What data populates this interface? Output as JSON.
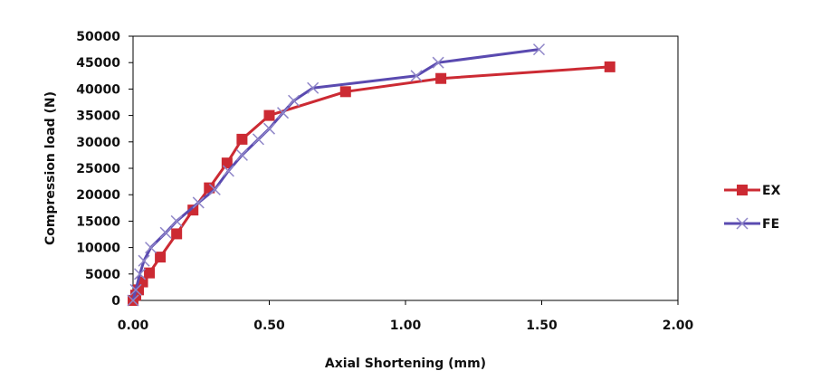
{
  "chart_data": {
    "type": "line",
    "title": "",
    "xlabel": "Axial Shortening (mm)",
    "ylabel": "Compression load (N)",
    "xlim": [
      0,
      2
    ],
    "ylim": [
      0,
      50000
    ],
    "x_ticks": [
      0,
      0.5,
      1,
      1.5,
      2
    ],
    "x_tick_labels": [
      "0.00",
      "0.50",
      "1.00",
      "1.50",
      "2.00"
    ],
    "y_ticks": [
      0,
      5000,
      10000,
      15000,
      20000,
      25000,
      30000,
      35000,
      40000,
      45000,
      50000
    ],
    "y_tick_labels": [
      "0",
      "5000",
      "10000",
      "15000",
      "20000",
      "25000",
      "30000",
      "35000",
      "40000",
      "45000",
      "50000"
    ],
    "grid": false,
    "legend_position": "right",
    "series": [
      {
        "name": "EX",
        "color": "#cc2a33",
        "marker": "square",
        "x": [
          0.0,
          0.01,
          0.02,
          0.035,
          0.06,
          0.1,
          0.16,
          0.22,
          0.28,
          0.345,
          0.4,
          0.5,
          0.78,
          1.13,
          1.75
        ],
        "y": [
          0,
          1000,
          2000,
          3500,
          5200,
          8200,
          12600,
          17100,
          21300,
          26000,
          30500,
          35000,
          39500,
          42000,
          44200
        ]
      },
      {
        "name": "FE",
        "color": "#5a4ab0",
        "marker": "x",
        "x": [
          0.0,
          0.01,
          0.025,
          0.04,
          0.065,
          0.12,
          0.16,
          0.24,
          0.3,
          0.35,
          0.4,
          0.46,
          0.5,
          0.55,
          0.59,
          0.66,
          1.04,
          1.12,
          1.49
        ],
        "y": [
          0,
          2000,
          5000,
          7500,
          10000,
          12800,
          15000,
          18500,
          21000,
          24500,
          27500,
          30500,
          32500,
          35500,
          37800,
          40200,
          42500,
          45000,
          47500
        ]
      }
    ],
    "legend": [
      {
        "label": "EX"
      },
      {
        "label": "FE"
      }
    ]
  }
}
